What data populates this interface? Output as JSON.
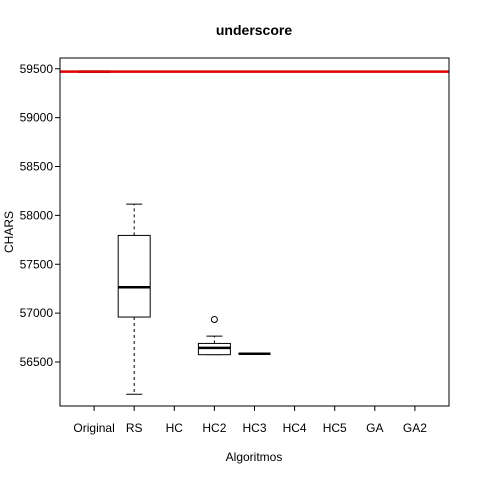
{
  "chart_data": {
    "type": "boxplot",
    "title": "underscore",
    "xlabel": "Algoritmos",
    "ylabel": "CHARS",
    "ylim": [
      56050,
      59610
    ],
    "yticks": [
      56500,
      57000,
      57500,
      58000,
      58500,
      59000,
      59500
    ],
    "categories": [
      "Original",
      "RS",
      "HC",
      "HC2",
      "HC3",
      "HC4",
      "HC5",
      "GA",
      "GA2"
    ],
    "boxes": [
      {
        "category": "Original",
        "min": 59470,
        "q1": 59470,
        "median": 59470,
        "q3": 59470,
        "max": 59470,
        "outliers": []
      },
      {
        "category": "RS",
        "min": 56170,
        "q1": 56960,
        "median": 57265,
        "q3": 57795,
        "max": 58115,
        "outliers": []
      },
      {
        "category": "HC2",
        "min": 56575,
        "q1": 56575,
        "median": 56645,
        "q3": 56690,
        "max": 56765,
        "outliers": [
          56935
        ]
      },
      {
        "category": "HC3",
        "min": 56585,
        "q1": 56585,
        "median": 56585,
        "q3": 56585,
        "max": 56585,
        "outliers": []
      }
    ],
    "reference_line": {
      "value": 59470,
      "color": "#dd0000"
    },
    "grid": false
  }
}
